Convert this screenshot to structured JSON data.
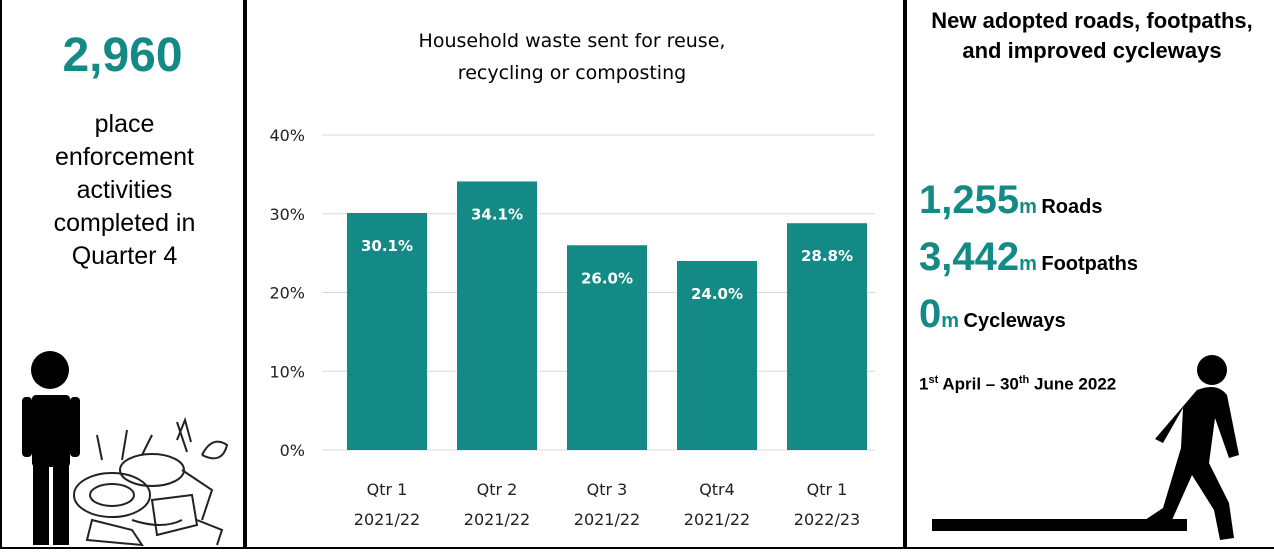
{
  "left_panel": {
    "figure": "2,960",
    "text": "place enforcement activities completed in Quarter 4"
  },
  "chart_data": {
    "type": "bar",
    "title": [
      "Household waste sent for reuse,",
      "recycling or composting"
    ],
    "categories": [
      [
        "Qtr 1",
        "2021/22"
      ],
      [
        "Qtr 2",
        "2021/22"
      ],
      [
        "Qtr 3",
        "2021/22"
      ],
      [
        "Qtr4",
        "2021/22"
      ],
      [
        "Qtr 1",
        "2022/23"
      ]
    ],
    "values": [
      30.1,
      34.1,
      26.0,
      24.0,
      28.8
    ],
    "value_labels": [
      "30.1%",
      "34.1%",
      "26.0%",
      "24.0%",
      "28.8%"
    ],
    "color": "#138a86",
    "ylim": [
      0,
      40
    ],
    "yticks": [
      {
        "value": 0,
        "label": "0%"
      },
      {
        "value": 10,
        "label": "10%"
      },
      {
        "value": 20,
        "label": "20%"
      },
      {
        "value": 30,
        "label": "30%"
      },
      {
        "value": 40,
        "label": "40%"
      }
    ],
    "grid": true
  },
  "right_panel": {
    "title": "New adopted roads, footpaths, and improved cycleways",
    "stats": [
      {
        "value": "1,255",
        "unit": "m",
        "label": "Roads"
      },
      {
        "value": "3,442",
        "unit": "m",
        "label": "Footpaths"
      },
      {
        "value": "0",
        "unit": "m",
        "label": "Cycleways"
      }
    ],
    "date": [
      "1",
      "st",
      " April – 30",
      "th",
      " June 2022"
    ]
  }
}
